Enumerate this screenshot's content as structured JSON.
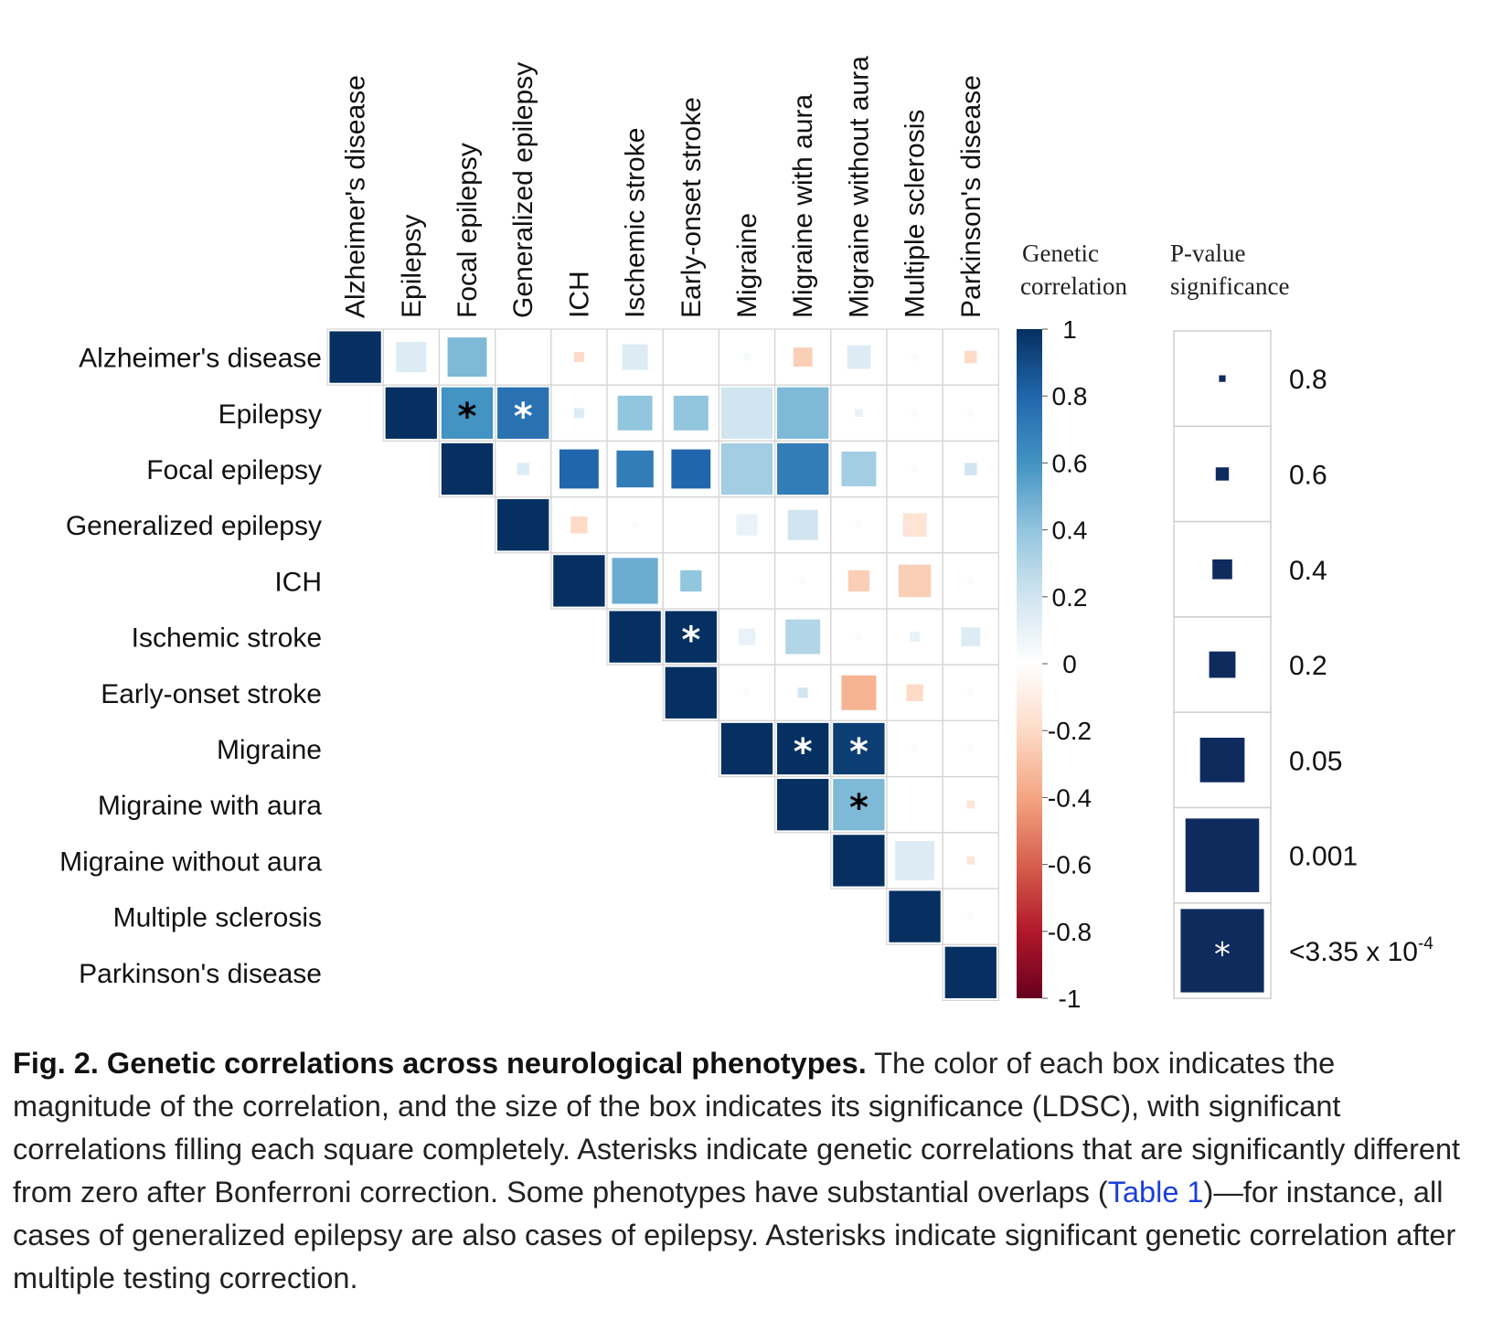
{
  "chart_data": {
    "type": "heatmap",
    "title": "",
    "variables": [
      "Alzheimer's disease",
      "Epilepsy",
      "Focal epilepsy",
      "Generalized epilepsy",
      "ICH",
      "Ischemic stroke",
      "Early-onset stroke",
      "Migraine",
      "Migraine with aura",
      "Migraine without aura",
      "Multiple sclerosis",
      "Parkinson's disease"
    ],
    "cells": [
      {
        "row": 0,
        "col": 0,
        "rg": 1.0,
        "p": 0.0
      },
      {
        "row": 0,
        "col": 1,
        "rg": 0.15,
        "p": 0.3
      },
      {
        "row": 0,
        "col": 2,
        "rg": 0.45,
        "p": 0.1
      },
      {
        "row": 0,
        "col": 4,
        "rg": -0.2,
        "p": 0.75
      },
      {
        "row": 0,
        "col": 5,
        "rg": 0.15,
        "p": 0.4
      },
      {
        "row": 0,
        "col": 7,
        "rg": 0.05,
        "p": 0.9
      },
      {
        "row": 0,
        "col": 8,
        "rg": -0.25,
        "p": 0.55
      },
      {
        "row": 0,
        "col": 9,
        "rg": 0.15,
        "p": 0.45
      },
      {
        "row": 0,
        "col": 10,
        "rg": 0.03,
        "p": 0.9
      },
      {
        "row": 0,
        "col": 11,
        "rg": -0.2,
        "p": 0.7
      },
      {
        "row": 1,
        "col": 1,
        "rg": 1.0,
        "p": 0.0
      },
      {
        "row": 1,
        "col": 2,
        "rg": 0.6,
        "p": 0.0001,
        "sig": true
      },
      {
        "row": 1,
        "col": 3,
        "rg": 0.75,
        "p": 0.0001,
        "sig": true
      },
      {
        "row": 1,
        "col": 4,
        "rg": 0.15,
        "p": 0.75
      },
      {
        "row": 1,
        "col": 5,
        "rg": 0.4,
        "p": 0.2
      },
      {
        "row": 1,
        "col": 6,
        "rg": 0.4,
        "p": 0.2
      },
      {
        "row": 1,
        "col": 7,
        "rg": 0.2,
        "p": 0.02
      },
      {
        "row": 1,
        "col": 8,
        "rg": 0.45,
        "p": 0.02
      },
      {
        "row": 1,
        "col": 9,
        "rg": 0.1,
        "p": 0.8
      },
      {
        "row": 1,
        "col": 10,
        "rg": 0.02,
        "p": 0.95
      },
      {
        "row": 1,
        "col": 11,
        "rg": 0.02,
        "p": 0.95
      },
      {
        "row": 2,
        "col": 2,
        "rg": 1.0,
        "p": 0.0
      },
      {
        "row": 2,
        "col": 3,
        "rg": 0.15,
        "p": 0.7
      },
      {
        "row": 2,
        "col": 4,
        "rg": 0.8,
        "p": 0.1
      },
      {
        "row": 2,
        "col": 5,
        "rg": 0.7,
        "p": 0.15
      },
      {
        "row": 2,
        "col": 6,
        "rg": 0.8,
        "p": 0.1
      },
      {
        "row": 2,
        "col": 7,
        "rg": 0.35,
        "p": 0.04
      },
      {
        "row": 2,
        "col": 8,
        "rg": 0.7,
        "p": 0.03
      },
      {
        "row": 2,
        "col": 9,
        "rg": 0.35,
        "p": 0.2
      },
      {
        "row": 2,
        "col": 10,
        "rg": 0.02,
        "p": 0.95
      },
      {
        "row": 2,
        "col": 11,
        "rg": 0.2,
        "p": 0.7
      },
      {
        "row": 3,
        "col": 3,
        "rg": 1.0,
        "p": 0.0
      },
      {
        "row": 3,
        "col": 4,
        "rg": -0.2,
        "p": 0.6
      },
      {
        "row": 3,
        "col": 5,
        "rg": 0.03,
        "p": 0.85
      },
      {
        "row": 3,
        "col": 7,
        "rg": 0.1,
        "p": 0.5
      },
      {
        "row": 3,
        "col": 8,
        "rg": 0.2,
        "p": 0.3
      },
      {
        "row": 3,
        "col": 9,
        "rg": 0.02,
        "p": 0.9
      },
      {
        "row": 3,
        "col": 10,
        "rg": -0.15,
        "p": 0.45
      },
      {
        "row": 4,
        "col": 4,
        "rg": 1.0,
        "p": 0.0
      },
      {
        "row": 4,
        "col": 5,
        "rg": 0.5,
        "p": 0.05
      },
      {
        "row": 4,
        "col": 6,
        "rg": 0.4,
        "p": 0.5
      },
      {
        "row": 4,
        "col": 8,
        "rg": 0.02,
        "p": 0.95
      },
      {
        "row": 4,
        "col": 9,
        "rg": -0.25,
        "p": 0.5
      },
      {
        "row": 4,
        "col": 10,
        "rg": -0.25,
        "p": 0.25
      },
      {
        "row": 4,
        "col": 11,
        "rg": 0.02,
        "p": 0.95
      },
      {
        "row": 5,
        "col": 5,
        "rg": 1.0,
        "p": 0.0
      },
      {
        "row": 5,
        "col": 6,
        "rg": 1.0,
        "p": 0.0001,
        "sig": true
      },
      {
        "row": 5,
        "col": 7,
        "rg": 0.1,
        "p": 0.6
      },
      {
        "row": 5,
        "col": 8,
        "rg": 0.3,
        "p": 0.2
      },
      {
        "row": 5,
        "col": 9,
        "rg": 0.02,
        "p": 0.95
      },
      {
        "row": 5,
        "col": 10,
        "rg": 0.1,
        "p": 0.75
      },
      {
        "row": 5,
        "col": 11,
        "rg": 0.15,
        "p": 0.55
      },
      {
        "row": 6,
        "col": 6,
        "rg": 1.0,
        "p": 0.0
      },
      {
        "row": 6,
        "col": 7,
        "rg": 0.02,
        "p": 0.95
      },
      {
        "row": 6,
        "col": 8,
        "rg": 0.2,
        "p": 0.75
      },
      {
        "row": 6,
        "col": 9,
        "rg": -0.35,
        "p": 0.2
      },
      {
        "row": 6,
        "col": 10,
        "rg": -0.2,
        "p": 0.6
      },
      {
        "row": 6,
        "col": 11,
        "rg": 0.02,
        "p": 0.95
      },
      {
        "row": 7,
        "col": 7,
        "rg": 1.0,
        "p": 0.0
      },
      {
        "row": 7,
        "col": 8,
        "rg": 1.0,
        "p": 0.0001,
        "sig": true
      },
      {
        "row": 7,
        "col": 9,
        "rg": 0.95,
        "p": 0.0001,
        "sig": true
      },
      {
        "row": 7,
        "col": 10,
        "rg": 0.02,
        "p": 0.95
      },
      {
        "row": 7,
        "col": 11,
        "rg": 0.02,
        "p": 0.95
      },
      {
        "row": 8,
        "col": 8,
        "rg": 1.0,
        "p": 0.0
      },
      {
        "row": 8,
        "col": 9,
        "rg": 0.45,
        "p": 0.0001,
        "sig": true
      },
      {
        "row": 8,
        "col": 11,
        "rg": -0.15,
        "p": 0.8
      },
      {
        "row": 9,
        "col": 9,
        "rg": 1.0,
        "p": 0.0
      },
      {
        "row": 9,
        "col": 10,
        "rg": 0.15,
        "p": 0.1
      },
      {
        "row": 9,
        "col": 11,
        "rg": -0.15,
        "p": 0.8
      },
      {
        "row": 10,
        "col": 10,
        "rg": 1.0,
        "p": 0.0
      },
      {
        "row": 10,
        "col": 11,
        "rg": 0.02,
        "p": 0.95
      },
      {
        "row": 11,
        "col": 11,
        "rg": 1.0,
        "p": 0.0
      }
    ],
    "color_scale": {
      "title_lines": [
        "Genetic",
        "correlation"
      ],
      "range": [
        -1,
        1
      ],
      "ticks": [
        "1",
        "0.8",
        "0.6",
        "0.4",
        "0.2",
        "0",
        "-0.2",
        "-0.4",
        "-0.6",
        "-0.8",
        "-1"
      ],
      "colors": {
        "neg": "#67001f",
        "mid": "#ffffff",
        "pos": "#053061"
      }
    },
    "size_legend": {
      "title_lines": [
        "P-value",
        "significance"
      ],
      "entries": [
        {
          "label": "0.8",
          "p": 0.8
        },
        {
          "label": "0.6",
          "p": 0.6
        },
        {
          "label": "0.4",
          "p": 0.4
        },
        {
          "label": "0.2",
          "p": 0.2
        },
        {
          "label": "0.05",
          "p": 0.05
        },
        {
          "label": "0.001",
          "p": 0.001
        },
        {
          "label_main": "<3.35 x 10",
          "label_sup": "-4",
          "p": 0.0001,
          "sig": true
        }
      ]
    },
    "asterisk_symbol": "*"
  },
  "caption": {
    "bold": "Fig. 2. Genetic correlations across neurological phenotypes.",
    "text_1": " The color of each box indicates the magnitude of the correlation, and the size of the box indicates its significance (LDSC), with significant correlations filling each square completely. Asterisks indicate genetic correlations that are significantly different from zero after Bonferroni correction. Some phenotypes have substantial overlaps (",
    "link": "Table 1",
    "text_2": ")—for instance, all cases of generalized epilepsy are also cases of epilepsy. Asterisks indicate significant genetic correlation after multiple testing correction."
  }
}
